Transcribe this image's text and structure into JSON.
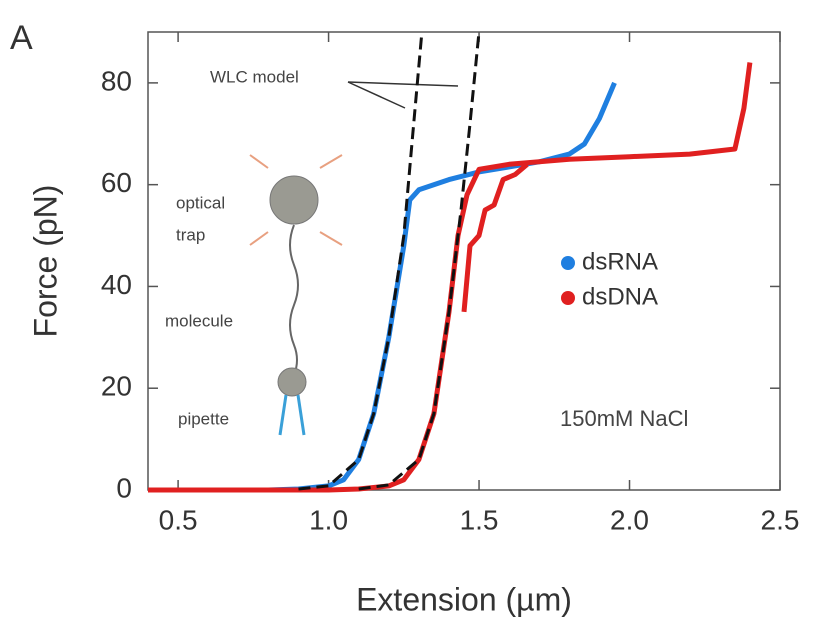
{
  "chart_data": {
    "type": "line",
    "panel_label": "A",
    "x_label": "Extension (µm)",
    "y_label": "Force (pN)",
    "xlim": [
      0.4,
      2.5
    ],
    "ylim": [
      0,
      90
    ],
    "xticks": [
      0.5,
      {
        "value": 1.0,
        "label": "1.0"
      },
      1.5,
      {
        "value": 2.0,
        "label": "2.0"
      },
      2.5
    ],
    "yticks": [
      0,
      20,
      40,
      60,
      80
    ],
    "grid": false,
    "legend": "right",
    "series": [
      {
        "name": "dsRNA",
        "color": "#1f7fe0",
        "x": [
          0.5,
          0.6,
          0.7,
          0.8,
          0.9,
          1.0,
          1.05,
          1.1,
          1.15,
          1.2,
          1.25,
          1.27,
          1.3,
          1.4,
          1.5,
          1.6,
          1.7,
          1.8,
          1.85,
          1.9,
          1.95
        ],
        "values": [
          0,
          0,
          0,
          0,
          0.2,
          0.8,
          2,
          6,
          15,
          30,
          48,
          57,
          59,
          61,
          62.5,
          63.5,
          64.5,
          66,
          68,
          73,
          80
        ]
      },
      {
        "name": "dsDNA",
        "color": "#e02020",
        "x": [
          0.4,
          0.6,
          0.8,
          1.0,
          1.1,
          1.2,
          1.25,
          1.3,
          1.35,
          1.4,
          1.43,
          1.46,
          1.5,
          1.6,
          1.8,
          2.0,
          2.2,
          2.35,
          2.38,
          2.4,
          null,
          1.45,
          1.47,
          1.5,
          1.52,
          1.55,
          1.58,
          1.62,
          1.66
        ],
        "values": [
          0,
          0,
          0,
          0,
          0.2,
          0.8,
          2,
          6,
          15,
          35,
          50,
          58,
          63,
          64,
          65,
          65.5,
          66,
          67,
          75,
          84,
          null,
          35,
          48,
          50,
          55,
          56,
          61,
          62,
          64
        ]
      },
      {
        "color": "#111111",
        "dashed": true,
        "x": [
          0.9,
          1.0,
          1.1,
          1.15,
          1.2,
          1.25,
          1.28,
          1.31
        ],
        "values": [
          0.2,
          0.8,
          6,
          15,
          30,
          50,
          70,
          90
        ]
      },
      {
        "color": "#111111",
        "dashed": true,
        "x": [
          1.1,
          1.2,
          1.3,
          1.35,
          1.4,
          1.44,
          1.47,
          1.5
        ],
        "values": [
          0.2,
          1,
          6,
          15,
          35,
          55,
          72,
          90
        ]
      }
    ],
    "annotations": [
      "WLC model",
      "optical",
      "trap",
      "molecule",
      "pipette",
      "150mM NaCl"
    ]
  }
}
